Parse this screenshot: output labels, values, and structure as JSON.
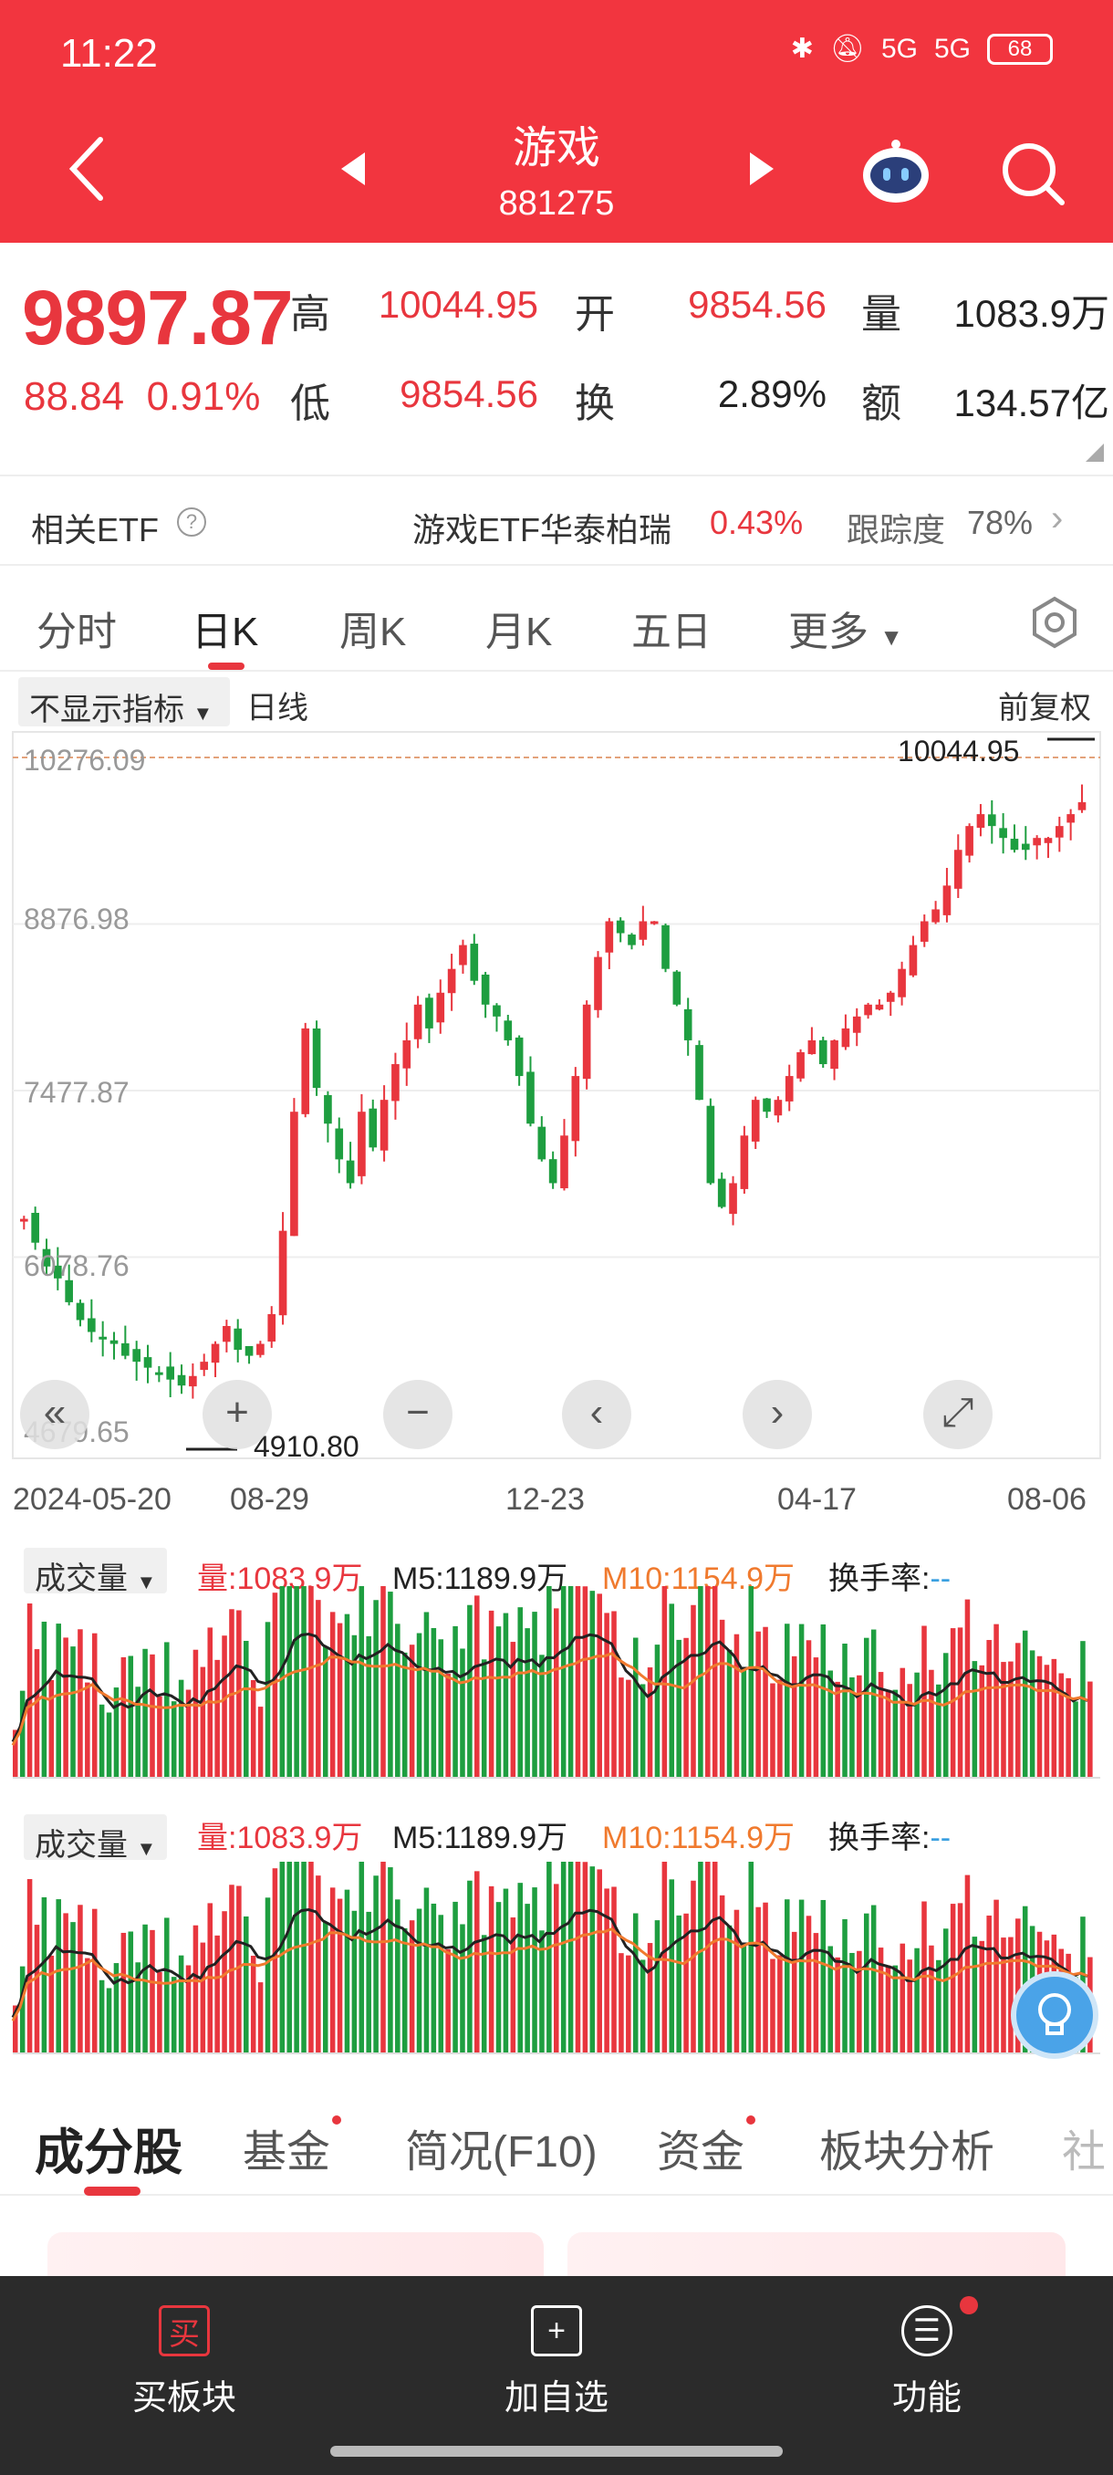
{
  "status": {
    "time": "11:22",
    "net1": "5G",
    "net2": "5G",
    "battery": "68"
  },
  "header": {
    "title": "游戏",
    "code": "881275"
  },
  "quote": {
    "price": "9897.87",
    "change": "88.84",
    "change_pct": "0.91%",
    "high_label": "高",
    "high": "10044.95",
    "low_label": "低",
    "low": "9854.56",
    "open_label": "开",
    "open": "9854.56",
    "turnover_label": "换",
    "turnover": "2.89%",
    "volume_label": "量",
    "volume": "1083.9万",
    "amount_label": "额",
    "amount": "134.57亿"
  },
  "etf": {
    "label": "相关ETF",
    "help": "?",
    "name": "游戏ETF华泰柏瑞",
    "pct": "0.43%",
    "track_label": "跟踪度",
    "track_val": "78%"
  },
  "period_tabs": [
    "分时",
    "日K",
    "周K",
    "月K",
    "五日",
    "更多"
  ],
  "chart_ctrl": {
    "indicator": "不显示指标",
    "line": "日线",
    "adjust": "前复权"
  },
  "chart_data": {
    "type": "candlestick",
    "y_ticks": [
      "10276.09",
      "8876.98",
      "7477.87",
      "6078.76",
      "4679.65"
    ],
    "ylim": [
      4679.65,
      10276.09
    ],
    "x_ticks": [
      "2024-05-20",
      "08-29",
      "12-23",
      "04-17",
      "08-06"
    ],
    "max_label": "10044.95",
    "min_label": "4910.80",
    "closes": [
      6400,
      6200,
      6000,
      5900,
      5700,
      5550,
      5450,
      5400,
      5350,
      5250,
      5200,
      5150,
      5100,
      5050,
      5000,
      5080,
      5200,
      5350,
      5500,
      5300,
      5250,
      5350,
      5600,
      6300,
      7300,
      8000,
      7500,
      7200,
      6900,
      6700,
      7300,
      7000,
      7400,
      7700,
      7900,
      8200,
      8000,
      8300,
      8500,
      8700,
      8400,
      8200,
      8100,
      7900,
      7600,
      7200,
      6900,
      6700,
      7100,
      7600,
      8200,
      8600,
      8900,
      8800,
      8700,
      8900,
      8900,
      8500,
      8200,
      7900,
      7400,
      6700,
      6500,
      6700,
      7100,
      7400,
      7300,
      7400,
      7600,
      7800,
      7900,
      7700,
      7900,
      8000,
      8100,
      8200,
      8200,
      8300,
      8500,
      8700,
      8900,
      9000,
      9200,
      9500,
      9700,
      9800,
      9700,
      9600,
      9500,
      9500,
      9600,
      9600,
      9700,
      9800,
      9900
    ]
  },
  "volume": {
    "selector": "成交量",
    "vol_label": "量:1083.9万",
    "m5_label": "M5:1189.9万",
    "m10_label": "M10:1154.9万",
    "turn_label": "换手率:",
    "turn_val": "--"
  },
  "bottom_tabs": [
    "成分股",
    "基金",
    "简况(F10)",
    "资金",
    "板块分析",
    "社"
  ],
  "footer": [
    {
      "label": "买板块",
      "icon": "买"
    },
    {
      "label": "加自选",
      "icon": "+"
    },
    {
      "label": "功能",
      "icon": "☰"
    }
  ]
}
